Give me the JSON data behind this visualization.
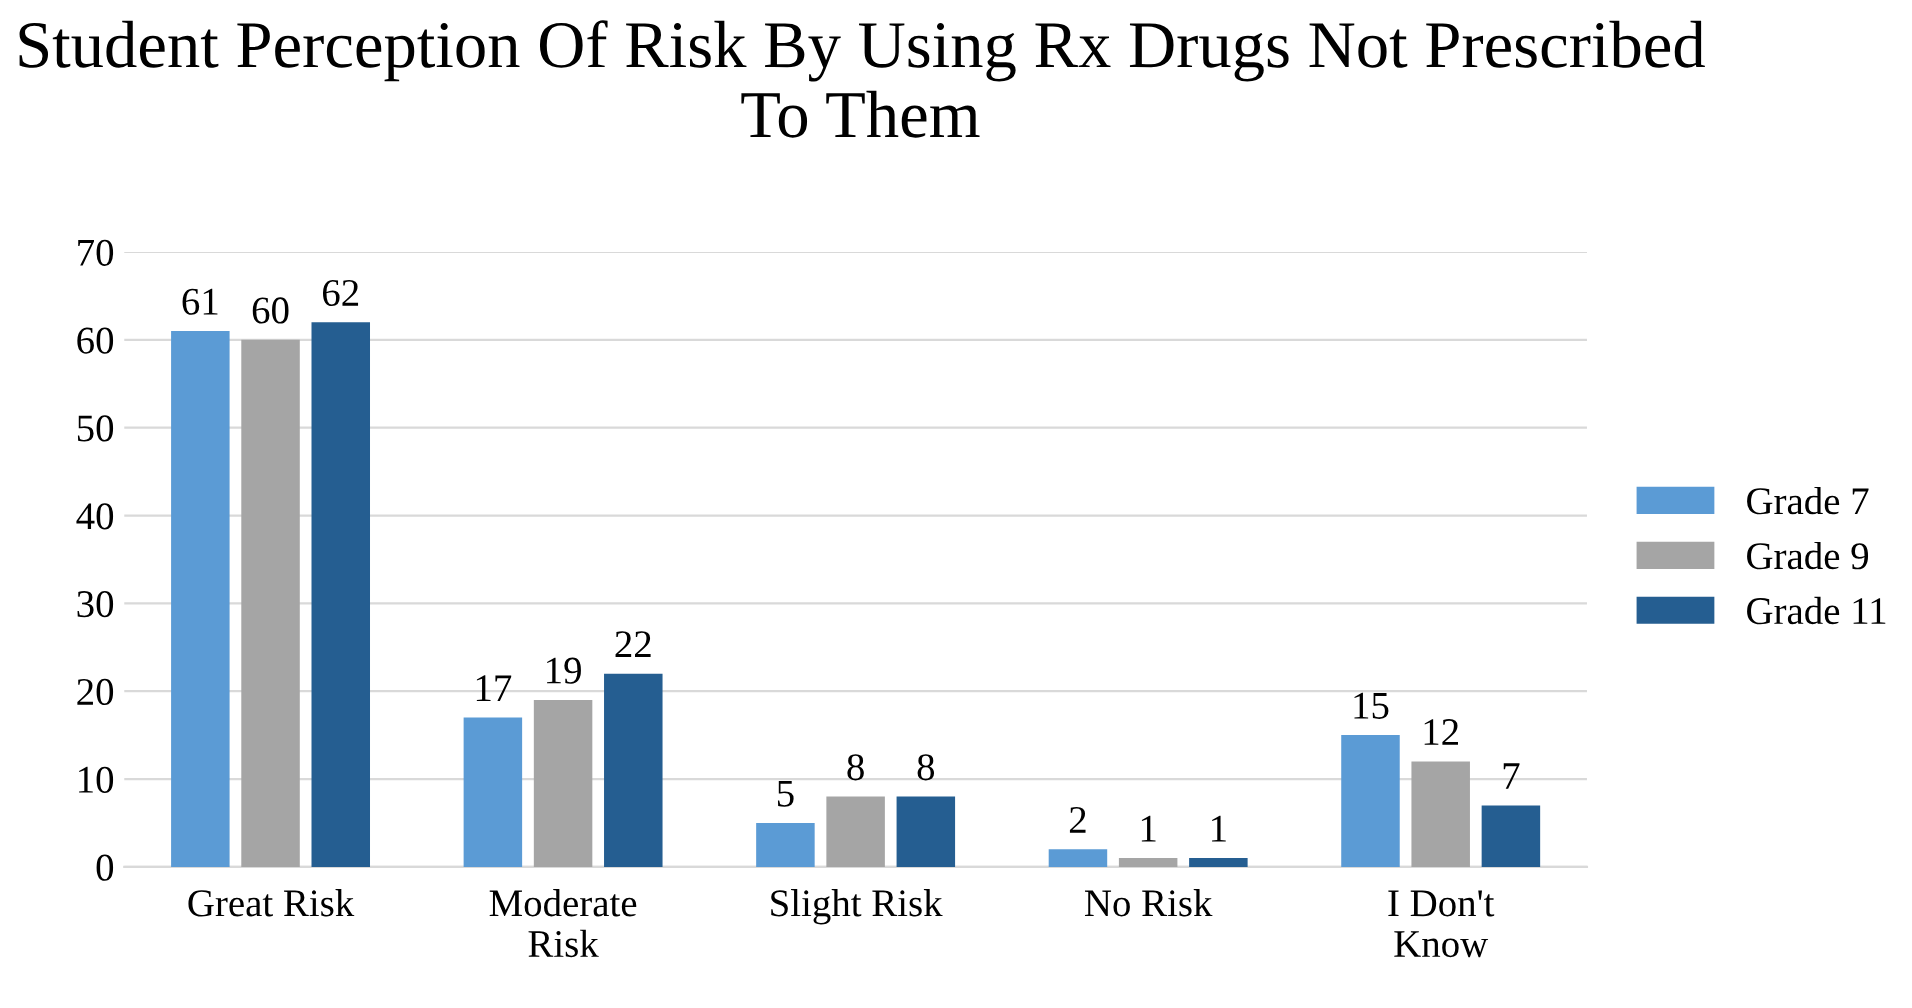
{
  "chart_data": {
    "type": "bar",
    "title": "Student Perception Of Risk By Using Rx Drugs Not Prescribed To Them",
    "categories": [
      "Great Risk",
      "Moderate\nRisk",
      "Slight Risk",
      "No Risk",
      "I Don't\nKnow"
    ],
    "series": [
      {
        "name": "Grade 7",
        "color": "#5b9bd5",
        "values": [
          61,
          17,
          5,
          2,
          15
        ]
      },
      {
        "name": "Grade 9",
        "color": "#a5a5a5",
        "values": [
          60,
          19,
          8,
          1,
          12
        ]
      },
      {
        "name": "Grade 11",
        "color": "#255e91",
        "values": [
          62,
          22,
          8,
          1,
          7
        ]
      }
    ],
    "ylim": [
      0,
      70
    ],
    "yticks": [
      0,
      10,
      20,
      30,
      40,
      50,
      60,
      70
    ],
    "grid": "y",
    "legend": "right",
    "data_labels": true
  }
}
